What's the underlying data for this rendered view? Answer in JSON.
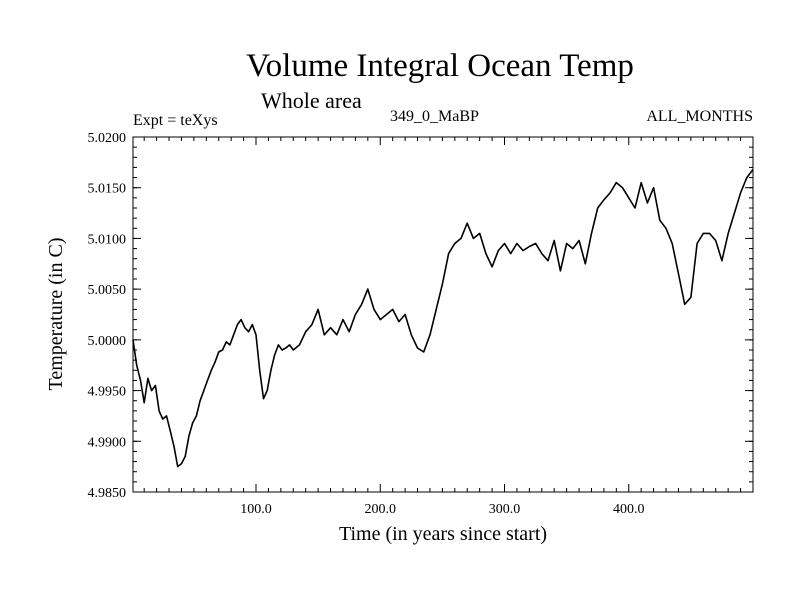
{
  "header": {
    "title": "Volume Integral Ocean Temp",
    "subtitle": "Whole area",
    "left_label": "Expt = teXys",
    "center_label": "349_0_MaBP",
    "right_label": "ALL_MONTHS"
  },
  "chart_data": {
    "type": "line",
    "title": "Volume Integral Ocean Temp",
    "subtitle": "Whole area",
    "xlabel": "Time (in years since start)",
    "ylabel": "Temperature (in C)",
    "xlim": [
      1,
      500
    ],
    "ylim": [
      4.985,
      5.02
    ],
    "x_ticks": [
      100,
      200,
      300,
      400
    ],
    "x_tick_labels": [
      "100.0",
      "200.0",
      "300.0",
      "400.0"
    ],
    "y_ticks": [
      4.985,
      4.99,
      4.995,
      5.0,
      5.005,
      5.01,
      5.015,
      5.02
    ],
    "y_tick_labels": [
      "4.9850",
      "4.9900",
      "4.9950",
      "5.0000",
      "5.0050",
      "5.0100",
      "5.0150",
      "5.0200"
    ],
    "grid": false,
    "series": [
      {
        "x": [
          1,
          4,
          7,
          10,
          13,
          16,
          19,
          22,
          25,
          28,
          31,
          34,
          37,
          40,
          43,
          46,
          49,
          52,
          55,
          58,
          61,
          64,
          67,
          70,
          73,
          76,
          79,
          82,
          85,
          88,
          91,
          94,
          97,
          100,
          103,
          106,
          109,
          112,
          115,
          118,
          121,
          124,
          127,
          130,
          135,
          140,
          145,
          150,
          155,
          160,
          165,
          170,
          175,
          180,
          185,
          190,
          195,
          200,
          205,
          210,
          215,
          220,
          225,
          230,
          235,
          240,
          245,
          250,
          255,
          260,
          265,
          270,
          275,
          280,
          285,
          290,
          295,
          300,
          305,
          310,
          315,
          320,
          325,
          330,
          335,
          340,
          345,
          350,
          355,
          360,
          365,
          370,
          375,
          380,
          385,
          390,
          395,
          400,
          405,
          410,
          415,
          420,
          425,
          430,
          435,
          440,
          445,
          450,
          455,
          460,
          465,
          470,
          475,
          480,
          485,
          490,
          495,
          500
        ],
        "y": [
          5.0,
          4.9975,
          4.996,
          4.9938,
          4.9962,
          4.995,
          4.9955,
          4.993,
          4.9922,
          4.9925,
          4.991,
          4.9895,
          4.9875,
          4.9878,
          4.9885,
          4.9905,
          4.9918,
          4.9925,
          4.994,
          4.995,
          4.996,
          4.997,
          4.9978,
          4.9988,
          4.999,
          4.9998,
          4.9995,
          5.0005,
          5.0015,
          5.002,
          5.0012,
          5.0008,
          5.0015,
          5.0005,
          4.997,
          4.9942,
          4.995,
          4.997,
          4.9985,
          4.9995,
          4.999,
          4.9992,
          4.9995,
          4.999,
          4.9995,
          5.0008,
          5.0015,
          5.003,
          5.0005,
          5.0012,
          5.0005,
          5.002,
          5.0008,
          5.0025,
          5.0035,
          5.005,
          5.003,
          5.002,
          5.0025,
          5.003,
          5.0018,
          5.0025,
          5.0005,
          4.9992,
          4.9988,
          5.0005,
          5.003,
          5.0055,
          5.0085,
          5.0095,
          5.01,
          5.0115,
          5.01,
          5.0105,
          5.0085,
          5.0072,
          5.0088,
          5.0095,
          5.0085,
          5.0095,
          5.0088,
          5.0092,
          5.0095,
          5.0085,
          5.0078,
          5.0098,
          5.0068,
          5.0095,
          5.009,
          5.0098,
          5.0075,
          5.0105,
          5.013,
          5.0138,
          5.0145,
          5.0155,
          5.015,
          5.014,
          5.013,
          5.0155,
          5.0135,
          5.015,
          5.0118,
          5.011,
          5.0095,
          5.0065,
          5.0035,
          5.0042,
          5.0095,
          5.0105,
          5.0105,
          5.0098,
          5.0078,
          5.0105,
          5.0125,
          5.0145,
          5.016,
          5.0168
        ]
      }
    ]
  }
}
